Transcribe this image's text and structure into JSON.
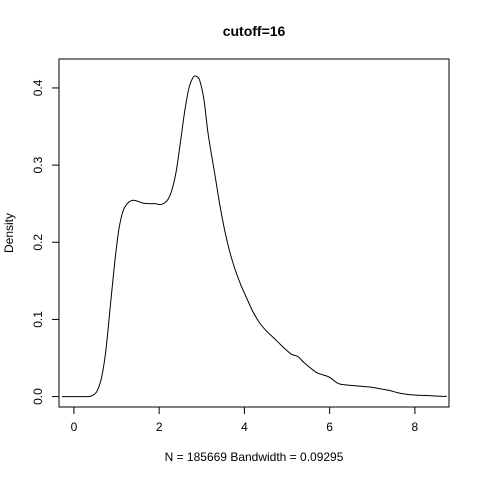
{
  "chart_data": {
    "type": "line",
    "title": "cutoff=16",
    "xlabel": "N = 185669   Bandwidth = 0.09295",
    "ylabel": "Density",
    "xlim": [
      -0.35,
      8.8
    ],
    "ylim": [
      -0.0135,
      0.4375
    ],
    "x_ticks": [
      0,
      2,
      4,
      6,
      8
    ],
    "x_tick_labels": [
      "0",
      "2",
      "4",
      "6",
      "8"
    ],
    "y_ticks": [
      0.0,
      0.1,
      0.2,
      0.3,
      0.4
    ],
    "y_tick_labels": [
      "0.0",
      "0.1",
      "0.2",
      "0.3",
      "0.4"
    ],
    "grid": false,
    "series": [
      {
        "x": [
          -0.28,
          0.3,
          0.45,
          0.55,
          0.65,
          0.75,
          0.85,
          0.95,
          1.05,
          1.15,
          1.25,
          1.35,
          1.45,
          1.6,
          1.75,
          1.9,
          2.05,
          2.2,
          2.3,
          2.4,
          2.5,
          2.6,
          2.7,
          2.8,
          2.87,
          2.95,
          3.05,
          3.15,
          3.3,
          3.45,
          3.6,
          3.75,
          3.9,
          4.05,
          4.2,
          4.35,
          4.5,
          4.65,
          4.8,
          4.95,
          5.1,
          5.25,
          5.4,
          5.55,
          5.7,
          5.85,
          6.0,
          6.2,
          6.4,
          6.6,
          6.8,
          7.0,
          7.2,
          7.4,
          7.6,
          7.8,
          8.0,
          8.2,
          8.4,
          8.6,
          8.75
        ],
        "y": [
          0.0,
          0.0,
          0.002,
          0.008,
          0.025,
          0.06,
          0.115,
          0.17,
          0.215,
          0.24,
          0.25,
          0.254,
          0.254,
          0.251,
          0.25,
          0.25,
          0.249,
          0.255,
          0.268,
          0.292,
          0.33,
          0.37,
          0.4,
          0.414,
          0.415,
          0.41,
          0.385,
          0.34,
          0.29,
          0.24,
          0.2,
          0.17,
          0.147,
          0.128,
          0.11,
          0.096,
          0.086,
          0.078,
          0.07,
          0.062,
          0.055,
          0.052,
          0.044,
          0.037,
          0.031,
          0.028,
          0.025,
          0.017,
          0.015,
          0.014,
          0.013,
          0.012,
          0.01,
          0.008,
          0.005,
          0.003,
          0.002,
          0.0015,
          0.001,
          0.0005,
          0.0003
        ]
      }
    ]
  }
}
